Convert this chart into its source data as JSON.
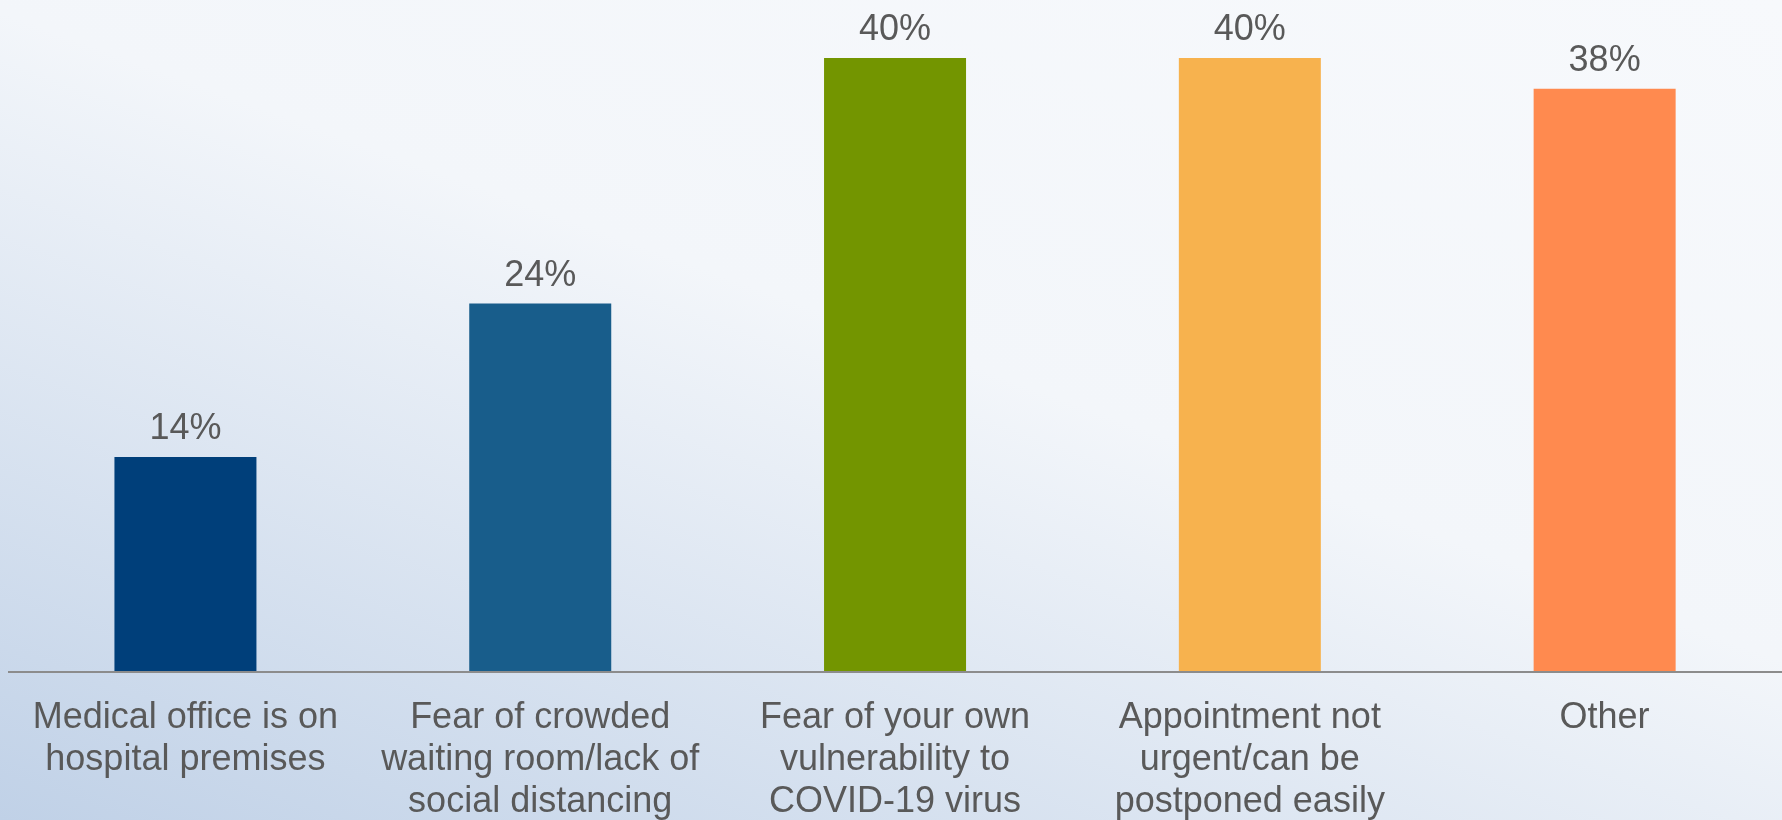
{
  "chart_data": {
    "type": "bar",
    "categories": [
      "Medical office is on hospital premises",
      "Fear of crowded waiting room/lack of social distancing",
      "Fear of your own vulnerability to COVID-19 virus",
      "Appointment not urgent/can be postponed easily",
      "Other"
    ],
    "values": [
      14,
      24,
      40,
      40,
      38
    ],
    "colors": [
      "#003f7a",
      "#185d8b",
      "#739500",
      "#f7b24e",
      "#ff8a4f"
    ],
    "value_labels": [
      "14%",
      "24%",
      "40%",
      "40%",
      "38%"
    ],
    "tick_labels": "x"
  }
}
